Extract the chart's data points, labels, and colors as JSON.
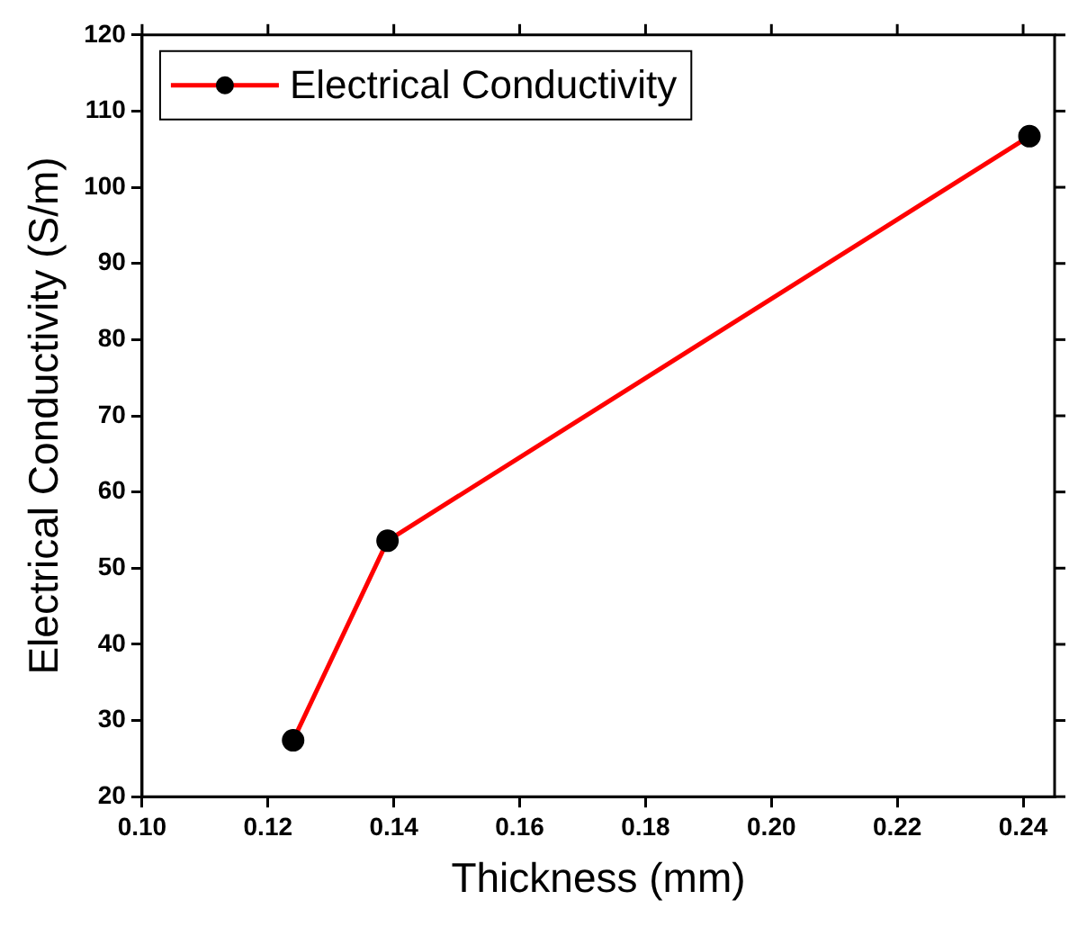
{
  "chart_data": {
    "type": "line",
    "xlabel": "Thickness (mm)",
    "ylabel": "Electrical Conductivity (S/m)",
    "xlim": [
      0.1,
      0.245
    ],
    "xticks": [
      {
        "value": 0.1,
        "label": "0.10"
      },
      {
        "value": 0.12,
        "label": "0.12"
      },
      {
        "value": 0.14,
        "label": "0.14"
      },
      {
        "value": 0.16,
        "label": "0.16"
      },
      {
        "value": 0.18,
        "label": "0.18"
      },
      {
        "value": 0.2,
        "label": "0.20"
      },
      {
        "value": 0.22,
        "label": "0.22"
      },
      {
        "value": 0.24,
        "label": "0.24"
      }
    ],
    "ylim": [
      20,
      120
    ],
    "yticks": [
      20,
      30,
      40,
      50,
      60,
      70,
      80,
      90,
      100,
      110,
      120
    ],
    "x": [
      0.124,
      0.139,
      0.241
    ],
    "series": [
      {
        "name": "Electrical Conductivity",
        "color": "#ff0000",
        "values": [
          27.4,
          53.6,
          106.7
        ]
      }
    ],
    "marker": "circle",
    "line_style": "solid",
    "grid": false,
    "legend": "top left"
  }
}
